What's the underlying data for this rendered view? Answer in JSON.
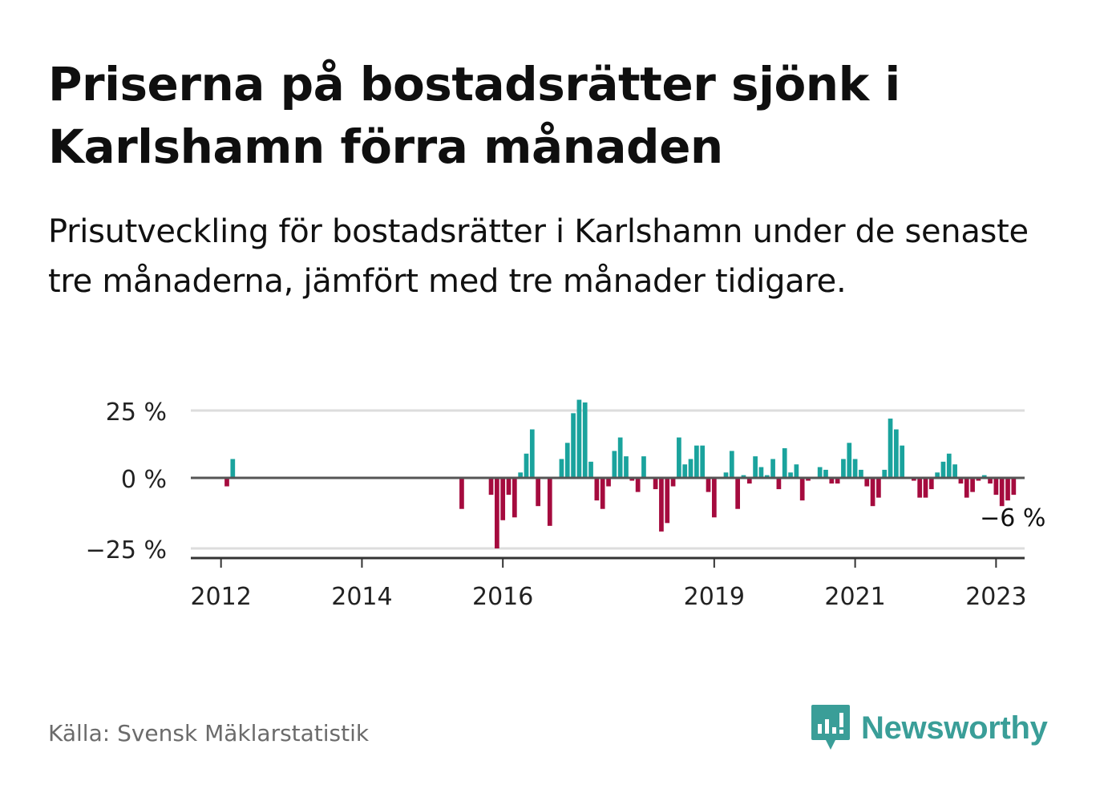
{
  "title": "Priserna på bostadsrätter sjönk i Karlshamn förra månaden",
  "subtitle": "Prisutveckling för bostadsrätter i Karlshamn under de senaste tre månaderna, jämfört med tre månader tidigare.",
  "source": "Källa: Svensk Mäklarstatistik",
  "brand": "Newsworthy",
  "colors": {
    "positive": "#1aa39d",
    "negative": "#a50b3e",
    "baseline": "#555555",
    "grid": "#dddddd",
    "brand": "#3a9e98"
  },
  "chart_data": {
    "type": "bar",
    "x_start": "2012-01",
    "x_end": "2023-04",
    "ylim": [
      -28,
      32
    ],
    "yticks": [
      25,
      0,
      -25
    ],
    "ytick_labels": [
      "25 %",
      "0 %",
      "−25 %"
    ],
    "xtick_years": [
      2012,
      2014,
      2016,
      2019,
      2021,
      2023
    ],
    "xtick_labels": [
      "2012",
      "2014",
      "2016",
      "2019",
      "2021",
      "2023"
    ],
    "grid": true,
    "last_value_label": "−6 %",
    "series": [
      {
        "months": [
          "2012-01",
          "2012-02",
          "2012-03",
          "2015-06",
          "2015-11",
          "2015-12",
          "2016-01",
          "2016-02",
          "2016-03",
          "2016-04",
          "2016-05",
          "2016-06",
          "2016-07",
          "2016-08",
          "2016-09",
          "2016-10",
          "2016-11",
          "2016-12",
          "2017-01",
          "2017-02",
          "2017-03",
          "2017-04",
          "2017-05",
          "2017-06",
          "2017-07",
          "2017-08",
          "2017-09",
          "2017-10",
          "2017-11",
          "2017-12",
          "2018-01",
          "2018-02",
          "2018-03",
          "2018-04",
          "2018-05",
          "2018-06",
          "2018-07",
          "2018-08",
          "2018-09",
          "2018-10",
          "2018-11",
          "2018-12",
          "2019-01",
          "2019-02",
          "2019-03",
          "2019-04",
          "2019-05",
          "2019-06",
          "2019-07",
          "2019-08",
          "2019-09",
          "2019-10",
          "2019-11",
          "2019-12",
          "2020-01",
          "2020-02",
          "2020-03",
          "2020-04",
          "2020-05",
          "2020-06",
          "2020-07",
          "2020-08",
          "2020-09",
          "2020-10",
          "2020-11",
          "2020-12",
          "2021-01",
          "2021-02",
          "2021-03",
          "2021-04",
          "2021-05",
          "2021-06",
          "2021-07",
          "2021-08",
          "2021-09",
          "2021-10",
          "2021-11",
          "2021-12",
          "2022-01",
          "2022-02",
          "2022-03",
          "2022-04",
          "2022-05",
          "2022-06",
          "2022-07",
          "2022-08",
          "2022-09",
          "2022-10",
          "2022-11",
          "2022-12",
          "2023-01",
          "2023-02"
        ],
        "values": [
          0,
          -3,
          7,
          -11,
          -6,
          -25,
          -15,
          -6,
          -14,
          2,
          9,
          18,
          -10,
          0,
          -17,
          0,
          7,
          13,
          24,
          29,
          28,
          6,
          -8,
          -11,
          -3,
          10,
          15,
          8,
          -1,
          -5,
          8,
          0,
          -4,
          -19,
          -16,
          -3,
          15,
          5,
          7,
          12,
          12,
          -5,
          -14,
          0,
          2,
          10,
          -11,
          1,
          -2,
          8,
          4,
          1,
          7,
          -4,
          11,
          2,
          5,
          -8,
          -1,
          0,
          4,
          3,
          -2,
          -2,
          7,
          13,
          7,
          3,
          -3,
          -10,
          -7,
          3,
          22,
          18,
          12,
          0,
          -1,
          -7,
          -7,
          -4,
          2,
          6,
          9,
          5,
          -2,
          -7,
          -5,
          -1,
          1,
          -2,
          -6,
          -10
        ]
      },
      {
        "months": [
          "2023-03",
          "2023-04"
        ],
        "values": [
          -8,
          -6
        ]
      }
    ]
  }
}
